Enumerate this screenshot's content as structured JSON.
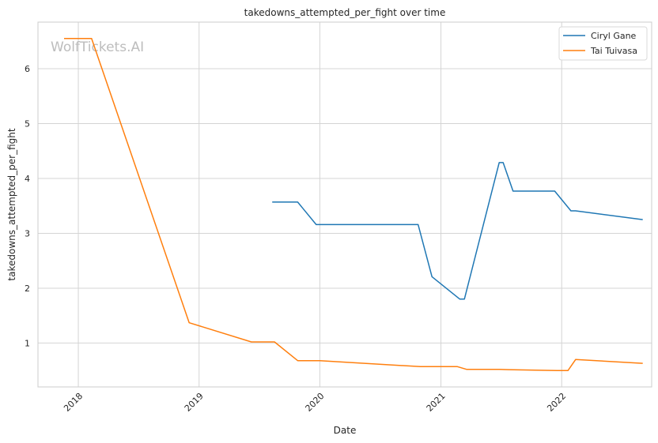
{
  "chart_data": {
    "type": "line",
    "title": "takedowns_attempted_per_fight over time",
    "xlabel": "Date",
    "ylabel": "takedowns_attempted_per_fight",
    "watermark": "WolfTickets.AI",
    "xlim": [
      "2017-09-01",
      "2022-09-30"
    ],
    "ylim": [
      0.2,
      6.85
    ],
    "x_ticks": [
      "2018-01-01",
      "2019-01-01",
      "2020-01-01",
      "2021-01-01",
      "2022-01-01"
    ],
    "x_tick_labels": [
      "2018",
      "2019",
      "2020",
      "2021",
      "2022"
    ],
    "y_ticks": [
      1,
      2,
      3,
      4,
      5,
      6
    ],
    "y_tick_labels": [
      "1",
      "2",
      "3",
      "4",
      "5",
      "6"
    ],
    "grid": true,
    "legend_position": "top-right",
    "series": [
      {
        "name": "Ciryl Gane",
        "color": "#1f77b4",
        "points": [
          [
            "2019-08-10",
            3.57
          ],
          [
            "2019-10-26",
            3.57
          ],
          [
            "2019-12-21",
            3.16
          ],
          [
            "2020-10-24",
            3.16
          ],
          [
            "2020-12-05",
            2.21
          ],
          [
            "2021-02-27",
            1.8
          ],
          [
            "2021-03-13",
            1.8
          ],
          [
            "2021-06-26",
            4.29
          ],
          [
            "2021-07-08",
            4.29
          ],
          [
            "2021-08-07",
            3.77
          ],
          [
            "2021-12-11",
            3.77
          ],
          [
            "2022-01-29",
            3.41
          ],
          [
            "2022-02-12",
            3.41
          ],
          [
            "2022-09-03",
            3.25
          ]
        ]
      },
      {
        "name": "Tai Tuivasa",
        "color": "#ff7f0e",
        "points": [
          [
            "2017-11-19",
            6.55
          ],
          [
            "2018-02-10",
            6.55
          ],
          [
            "2018-12-02",
            1.37
          ],
          [
            "2019-06-08",
            1.02
          ],
          [
            "2019-08-17",
            1.02
          ],
          [
            "2019-10-26",
            0.68
          ],
          [
            "2020-01-01",
            0.68
          ],
          [
            "2020-10-31",
            0.57
          ],
          [
            "2021-02-20",
            0.57
          ],
          [
            "2021-03-20",
            0.52
          ],
          [
            "2021-06-26",
            0.52
          ],
          [
            "2021-07-24",
            0.515
          ],
          [
            "2021-12-18",
            0.5
          ],
          [
            "2022-01-20",
            0.5
          ],
          [
            "2022-02-12",
            0.7
          ],
          [
            "2022-09-03",
            0.63
          ]
        ]
      }
    ]
  }
}
